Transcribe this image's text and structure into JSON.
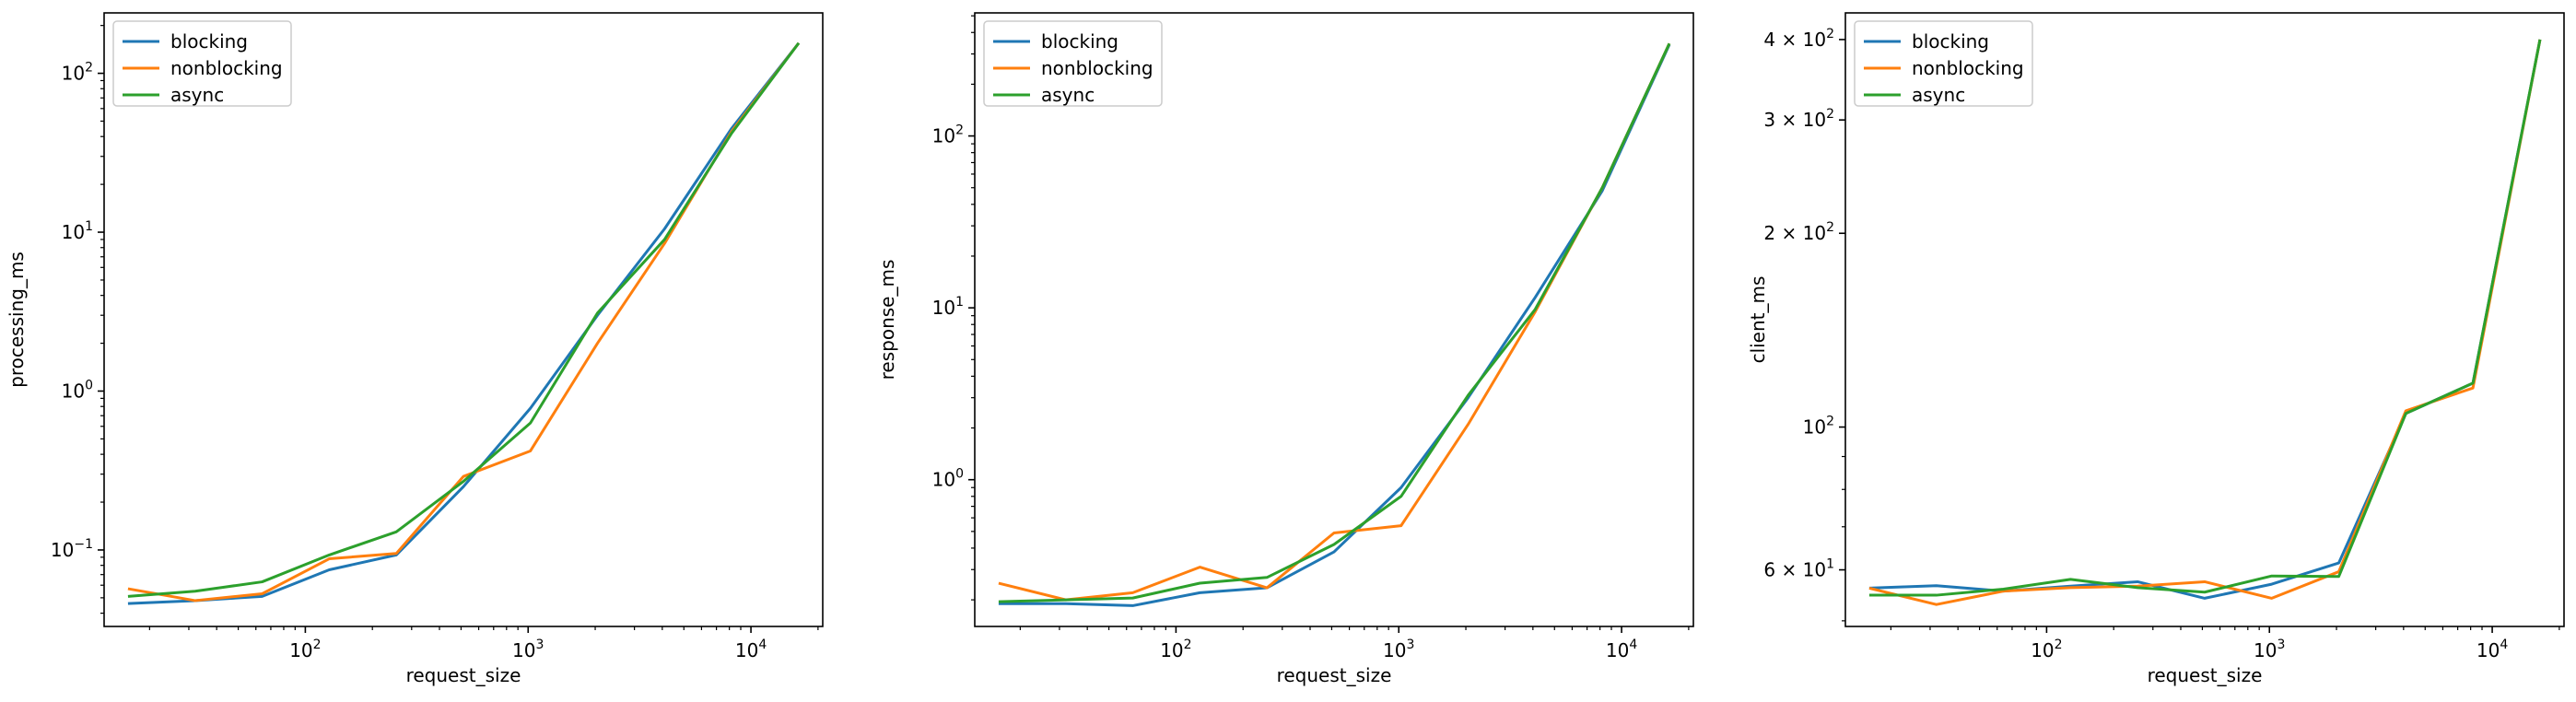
{
  "colors": {
    "blocking": "#1f77b4",
    "nonblocking": "#ff7f0e",
    "async": "#2ca02c"
  },
  "chart_data": [
    {
      "type": "line",
      "xlabel": "request_size",
      "ylabel": "processing_ms",
      "xscale": "log",
      "yscale": "log",
      "xlim": [
        12.5,
        21000
      ],
      "ylim": [
        0.033,
        240
      ],
      "legend_position": "top-left",
      "x": [
        16,
        32,
        64,
        128,
        256,
        512,
        1024,
        2048,
        4096,
        8192,
        16384
      ],
      "xticks": [
        {
          "value": 100,
          "base": "10",
          "exp": "2"
        },
        {
          "value": 1000,
          "base": "10",
          "exp": "3"
        },
        {
          "value": 10000,
          "base": "10",
          "exp": "4"
        }
      ],
      "yticks": [
        {
          "value": 0.1,
          "base": "10",
          "exp": "−1"
        },
        {
          "value": 1,
          "base": "10",
          "exp": "0"
        },
        {
          "value": 10,
          "base": "10",
          "exp": "1"
        },
        {
          "value": 100,
          "base": "10",
          "exp": "2"
        }
      ],
      "series": [
        {
          "name": "blocking",
          "key": "blocking",
          "values": [
            0.046,
            0.048,
            0.051,
            0.075,
            0.093,
            0.25,
            0.78,
            3.0,
            10.5,
            45,
            155
          ]
        },
        {
          "name": "nonblocking",
          "key": "nonblocking",
          "values": [
            0.057,
            0.048,
            0.053,
            0.088,
            0.095,
            0.29,
            0.42,
            2.0,
            8.5,
            43,
            155
          ]
        },
        {
          "name": "async",
          "key": "async",
          "values": [
            0.051,
            0.055,
            0.063,
            0.093,
            0.13,
            0.27,
            0.63,
            3.1,
            9.0,
            42,
            155
          ]
        }
      ]
    },
    {
      "type": "line",
      "xlabel": "request_size",
      "ylabel": "response_ms",
      "xscale": "log",
      "yscale": "log",
      "xlim": [
        12.5,
        21000
      ],
      "ylim": [
        0.14,
        520
      ],
      "legend_position": "top-left",
      "x": [
        16,
        32,
        64,
        128,
        256,
        512,
        1024,
        2048,
        4096,
        8192,
        16384
      ],
      "xticks": [
        {
          "value": 100,
          "base": "10",
          "exp": "2"
        },
        {
          "value": 1000,
          "base": "10",
          "exp": "3"
        },
        {
          "value": 10000,
          "base": "10",
          "exp": "4"
        }
      ],
      "yticks": [
        {
          "value": 1,
          "base": "10",
          "exp": "0"
        },
        {
          "value": 10,
          "base": "10",
          "exp": "1"
        },
        {
          "value": 100,
          "base": "10",
          "exp": "2"
        }
      ],
      "series": [
        {
          "name": "blocking",
          "key": "blocking",
          "values": [
            0.19,
            0.19,
            0.185,
            0.22,
            0.235,
            0.38,
            0.9,
            3.0,
            11.5,
            48,
            340
          ]
        },
        {
          "name": "nonblocking",
          "key": "nonblocking",
          "values": [
            0.25,
            0.2,
            0.22,
            0.31,
            0.235,
            0.49,
            0.54,
            2.1,
            9.5,
            50,
            345
          ]
        },
        {
          "name": "async",
          "key": "async",
          "values": [
            0.195,
            0.2,
            0.205,
            0.25,
            0.27,
            0.42,
            0.8,
            3.1,
            9.8,
            50,
            345
          ]
        }
      ]
    },
    {
      "type": "line",
      "xlabel": "request_size",
      "ylabel": "client_ms",
      "xscale": "log",
      "yscale": "log",
      "xlim": [
        12.5,
        21000
      ],
      "ylim": [
        49,
        440
      ],
      "legend_position": "top-left",
      "x": [
        16,
        32,
        64,
        128,
        256,
        512,
        1024,
        2048,
        4096,
        8192,
        16384
      ],
      "xticks": [
        {
          "value": 100,
          "base": "10",
          "exp": "2"
        },
        {
          "value": 1000,
          "base": "10",
          "exp": "3"
        },
        {
          "value": 10000,
          "base": "10",
          "exp": "4"
        }
      ],
      "yticks": [
        {
          "value": 60,
          "base": "6 × 10",
          "exp": "1"
        },
        {
          "value": 100,
          "base": "10",
          "exp": "2"
        },
        {
          "value": 200,
          "base": "2 × 10",
          "exp": "2"
        },
        {
          "value": 300,
          "base": "3 × 10",
          "exp": "2"
        },
        {
          "value": 400,
          "base": "4 × 10",
          "exp": "2"
        }
      ],
      "series": [
        {
          "name": "blocking",
          "key": "blocking",
          "values": [
            56.2,
            56.7,
            55.6,
            56.6,
            57.5,
            54.2,
            57.0,
            61.5,
            105,
            117,
            400
          ]
        },
        {
          "name": "nonblocking",
          "key": "nonblocking",
          "values": [
            56.2,
            53.0,
            55.6,
            56.3,
            56.6,
            57.5,
            54.2,
            59.6,
            106,
            115,
            400
          ]
        },
        {
          "name": "async",
          "key": "async",
          "values": [
            54.8,
            54.8,
            56.0,
            58.0,
            56.3,
            55.4,
            58.7,
            58.6,
            105,
            117,
            400
          ]
        }
      ]
    }
  ]
}
